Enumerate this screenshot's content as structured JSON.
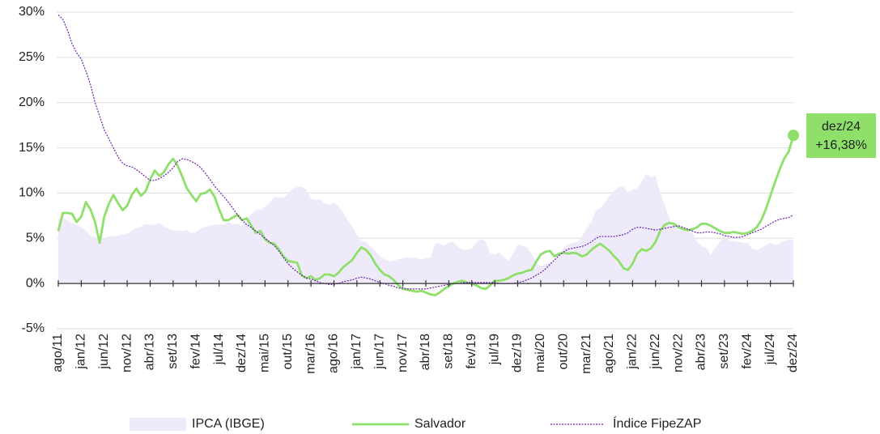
{
  "chart_data": {
    "type": "line",
    "categories": [
      "ago/11",
      null,
      null,
      null,
      null,
      "jan/12",
      null,
      null,
      null,
      null,
      "jun/12",
      null,
      null,
      null,
      null,
      "nov/12",
      null,
      null,
      null,
      null,
      "abr/13",
      null,
      null,
      null,
      null,
      "set/13",
      null,
      null,
      null,
      null,
      "fev/14",
      null,
      null,
      null,
      null,
      "jul/14",
      null,
      null,
      null,
      null,
      "dez/14",
      null,
      null,
      null,
      null,
      "mai/15",
      null,
      null,
      null,
      null,
      "out/15",
      null,
      null,
      null,
      null,
      "mar/16",
      null,
      null,
      null,
      null,
      "ago/16",
      null,
      null,
      null,
      null,
      "jan/17",
      null,
      null,
      null,
      null,
      "jun/17",
      null,
      null,
      null,
      null,
      "nov/17",
      null,
      null,
      null,
      null,
      "abr/18",
      null,
      null,
      null,
      null,
      "set/18",
      null,
      null,
      null,
      null,
      "fev/19",
      null,
      null,
      null,
      null,
      "jul/19",
      null,
      null,
      null,
      null,
      "dez/19",
      null,
      null,
      null,
      null,
      "mai/20",
      null,
      null,
      null,
      null,
      "out/20",
      null,
      null,
      null,
      null,
      "mar/21",
      null,
      null,
      null,
      null,
      "ago/21",
      null,
      null,
      null,
      null,
      "jan/22",
      null,
      null,
      null,
      null,
      "jun/22",
      null,
      null,
      null,
      null,
      "nov/22",
      null,
      null,
      null,
      null,
      "abr/23",
      null,
      null,
      null,
      null,
      "set/23",
      null,
      null,
      null,
      null,
      "fev/24",
      null,
      null,
      null,
      null,
      "jul/24",
      null,
      null,
      null,
      null,
      "dez/24"
    ],
    "series": [
      {
        "name": "IPCA (IBGE)",
        "type": "area",
        "color": "#efeafa",
        "values": [
          7.23,
          7.31,
          6.97,
          6.64,
          6.5,
          6.22,
          5.85,
          5.24,
          5.1,
          4.99,
          4.92,
          5.2,
          5.24,
          5.28,
          5.45,
          5.53,
          5.84,
          6.15,
          6.31,
          6.59,
          6.49,
          6.5,
          6.7,
          6.27,
          6.09,
          5.86,
          5.84,
          5.77,
          5.91,
          5.59,
          5.68,
          6.15,
          6.28,
          6.37,
          6.52,
          6.5,
          6.51,
          6.75,
          6.59,
          6.56,
          6.41,
          7.14,
          7.7,
          8.13,
          8.17,
          8.47,
          8.89,
          9.56,
          9.53,
          9.49,
          9.93,
          10.48,
          10.67,
          10.71,
          10.36,
          9.39,
          9.28,
          9.32,
          8.84,
          8.74,
          8.97,
          8.48,
          7.87,
          6.99,
          6.29,
          5.35,
          4.76,
          4.57,
          4.08,
          3.6,
          3.0,
          2.71,
          2.46,
          2.54,
          2.7,
          2.8,
          2.95,
          2.86,
          2.84,
          2.68,
          2.76,
          2.86,
          4.39,
          4.48,
          4.19,
          4.53,
          4.56,
          4.05,
          3.75,
          3.78,
          3.89,
          4.58,
          4.94,
          4.66,
          3.37,
          3.22,
          3.43,
          2.89,
          2.54,
          3.27,
          4.31,
          4.19,
          4.01,
          3.3,
          2.4,
          1.88,
          2.13,
          2.31,
          2.44,
          3.14,
          3.92,
          4.31,
          4.52,
          4.56,
          5.2,
          6.1,
          6.76,
          8.06,
          8.35,
          8.99,
          9.68,
          10.25,
          10.67,
          10.74,
          10.06,
          10.38,
          10.54,
          11.3,
          12.13,
          11.73,
          11.89,
          10.07,
          8.73,
          7.17,
          6.47,
          5.9,
          5.79,
          5.77,
          5.6,
          4.65,
          4.18,
          3.94,
          3.16,
          3.99,
          4.61,
          5.19,
          4.82,
          4.68,
          4.62,
          4.51,
          4.5,
          3.93,
          3.69,
          3.93,
          4.23,
          4.5,
          4.24,
          4.42,
          4.76,
          4.87,
          4.83
        ]
      },
      {
        "name": "Salvador",
        "type": "line",
        "color": "#8ee06a",
        "values": [
          5.8,
          7.8,
          7.8,
          7.7,
          6.8,
          7.4,
          9.0,
          8.2,
          6.8,
          4.5,
          7.4,
          8.8,
          9.8,
          8.9,
          8.1,
          8.6,
          9.8,
          10.5,
          9.7,
          10.2,
          11.5,
          12.5,
          11.9,
          12.3,
          13.2,
          13.8,
          13.0,
          11.8,
          10.5,
          9.8,
          9.1,
          9.9,
          10.0,
          10.4,
          9.6,
          8.2,
          7.0,
          7.0,
          7.3,
          7.6,
          7.0,
          7.2,
          6.4,
          5.6,
          5.8,
          4.9,
          4.5,
          4.4,
          3.8,
          3.0,
          2.5,
          2.4,
          2.3,
          0.9,
          0.6,
          0.8,
          0.4,
          0.6,
          1.0,
          1.0,
          0.8,
          1.2,
          1.8,
          2.2,
          2.6,
          3.4,
          4.0,
          3.7,
          3.1,
          2.2,
          1.5,
          1.0,
          0.8,
          0.4,
          -0.2,
          -0.6,
          -0.7,
          -0.8,
          -0.9,
          -0.8,
          -1.0,
          -1.2,
          -1.3,
          -1.0,
          -0.6,
          -0.3,
          0.0,
          0.2,
          0.3,
          0.1,
          0.0,
          -0.2,
          -0.5,
          -0.6,
          -0.2,
          0.3,
          0.3,
          0.4,
          0.6,
          0.9,
          1.1,
          1.2,
          1.4,
          1.5,
          2.4,
          3.2,
          3.5,
          3.6,
          3.0,
          3.3,
          3.4,
          3.3,
          3.4,
          3.3,
          3.0,
          3.2,
          3.7,
          4.1,
          4.4,
          4.0,
          3.6,
          3.0,
          2.5,
          1.7,
          1.5,
          2.2,
          3.3,
          3.8,
          3.6,
          3.9,
          4.6,
          5.8,
          6.5,
          6.7,
          6.6,
          6.2,
          6.0,
          5.9,
          6.0,
          6.2,
          6.6,
          6.6,
          6.4,
          6.1,
          5.8,
          5.6,
          5.6,
          5.7,
          5.6,
          5.5,
          5.6,
          5.8,
          6.2,
          7.0,
          8.2,
          9.7,
          11.2,
          12.6,
          13.8,
          14.6,
          16.38
        ],
        "value_labels": [
          null,
          null,
          null,
          null,
          null,
          null,
          null,
          null,
          null,
          null,
          null,
          null,
          null,
          null,
          null,
          null,
          null,
          null,
          null,
          null,
          null,
          null,
          null,
          null,
          null,
          null,
          null,
          null,
          null,
          null,
          null,
          null,
          null,
          null,
          null,
          null,
          null,
          null,
          null,
          null,
          null,
          null,
          null,
          null,
          null,
          null,
          null,
          null,
          null,
          null,
          null,
          null,
          null,
          null,
          null,
          null,
          null,
          null,
          null,
          null,
          null,
          null,
          null,
          null,
          null,
          null,
          null,
          null,
          null,
          null,
          null,
          null,
          null,
          null,
          null,
          null,
          null,
          null,
          null,
          null,
          null,
          null,
          null,
          null,
          null,
          null,
          null,
          null,
          null,
          null,
          null,
          null,
          null,
          null,
          null,
          null,
          null,
          null,
          null,
          null,
          null,
          null,
          null,
          null,
          null,
          null,
          null,
          null,
          null,
          null,
          null,
          null,
          null,
          null,
          null,
          null,
          null,
          null,
          null,
          null,
          null,
          null,
          null,
          null,
          null,
          null,
          null,
          null,
          null,
          null,
          null,
          null,
          null,
          null,
          null,
          null,
          null,
          null,
          null,
          null,
          null,
          null,
          null,
          null,
          null,
          null,
          null,
          null,
          null,
          null,
          null,
          null,
          null,
          null,
          null,
          null,
          null,
          null,
          null,
          null,
          "+16,38%"
        ]
      },
      {
        "name": "Índice FipeZAP",
        "type": "line",
        "dashed": true,
        "color": "#6a1fb5",
        "values": [
          29.7,
          29.2,
          28.0,
          26.5,
          25.5,
          24.8,
          23.5,
          22.0,
          20.0,
          18.5,
          17.0,
          16.0,
          15.0,
          14.0,
          13.3,
          13.0,
          12.9,
          12.6,
          12.2,
          11.8,
          11.4,
          11.4,
          11.6,
          11.9,
          12.3,
          12.8,
          13.5,
          13.8,
          13.7,
          13.5,
          13.2,
          12.8,
          12.2,
          11.5,
          10.8,
          10.2,
          9.6,
          9.0,
          8.3,
          7.6,
          7.0,
          6.5,
          6.2,
          5.8,
          5.4,
          5.0,
          4.6,
          4.2,
          3.6,
          2.9,
          2.2,
          1.7,
          1.3,
          0.9,
          0.6,
          0.5,
          0.3,
          0.1,
          0.0,
          -0.1,
          -0.1,
          0.0,
          0.2,
          0.3,
          0.4,
          0.6,
          0.7,
          0.6,
          0.5,
          0.3,
          0.1,
          0.0,
          -0.2,
          -0.3,
          -0.5,
          -0.5,
          -0.6,
          -0.6,
          -0.6,
          -0.6,
          -0.6,
          -0.5,
          -0.4,
          -0.3,
          -0.2,
          -0.1,
          0.0,
          0.0,
          0.1,
          0.1,
          0.1,
          0.1,
          0.1,
          0.1,
          0.1,
          0.1,
          0.0,
          0.0,
          0.0,
          0.0,
          0.1,
          0.2,
          0.4,
          0.6,
          0.9,
          1.2,
          1.6,
          2.1,
          2.6,
          3.1,
          3.5,
          3.8,
          3.9,
          4.0,
          4.1,
          4.3,
          4.6,
          5.0,
          5.2,
          5.2,
          5.2,
          5.2,
          5.3,
          5.4,
          5.6,
          6.0,
          6.2,
          6.2,
          6.1,
          6.0,
          5.9,
          6.0,
          6.1,
          6.2,
          6.3,
          6.4,
          6.2,
          6.0,
          5.8,
          5.6,
          5.6,
          5.7,
          5.7,
          5.6,
          5.5,
          5.3,
          5.2,
          5.1,
          5.1,
          5.2,
          5.4,
          5.6,
          5.8,
          6.0,
          6.3,
          6.6,
          6.9,
          7.1,
          7.2,
          7.3,
          7.6
        ]
      }
    ],
    "ylim": [
      -5,
      30
    ],
    "yticks": [
      {
        "value": -5,
        "label": "-5%"
      },
      {
        "value": 0,
        "label": "0%"
      },
      {
        "value": 5,
        "label": "5%"
      },
      {
        "value": 10,
        "label": "10%"
      },
      {
        "value": 15,
        "label": "15%"
      },
      {
        "value": 20,
        "label": "20%"
      },
      {
        "value": 25,
        "label": "25%"
      },
      {
        "value": 30,
        "label": "30%"
      }
    ],
    "grid": true,
    "legend": "bottom"
  }
}
